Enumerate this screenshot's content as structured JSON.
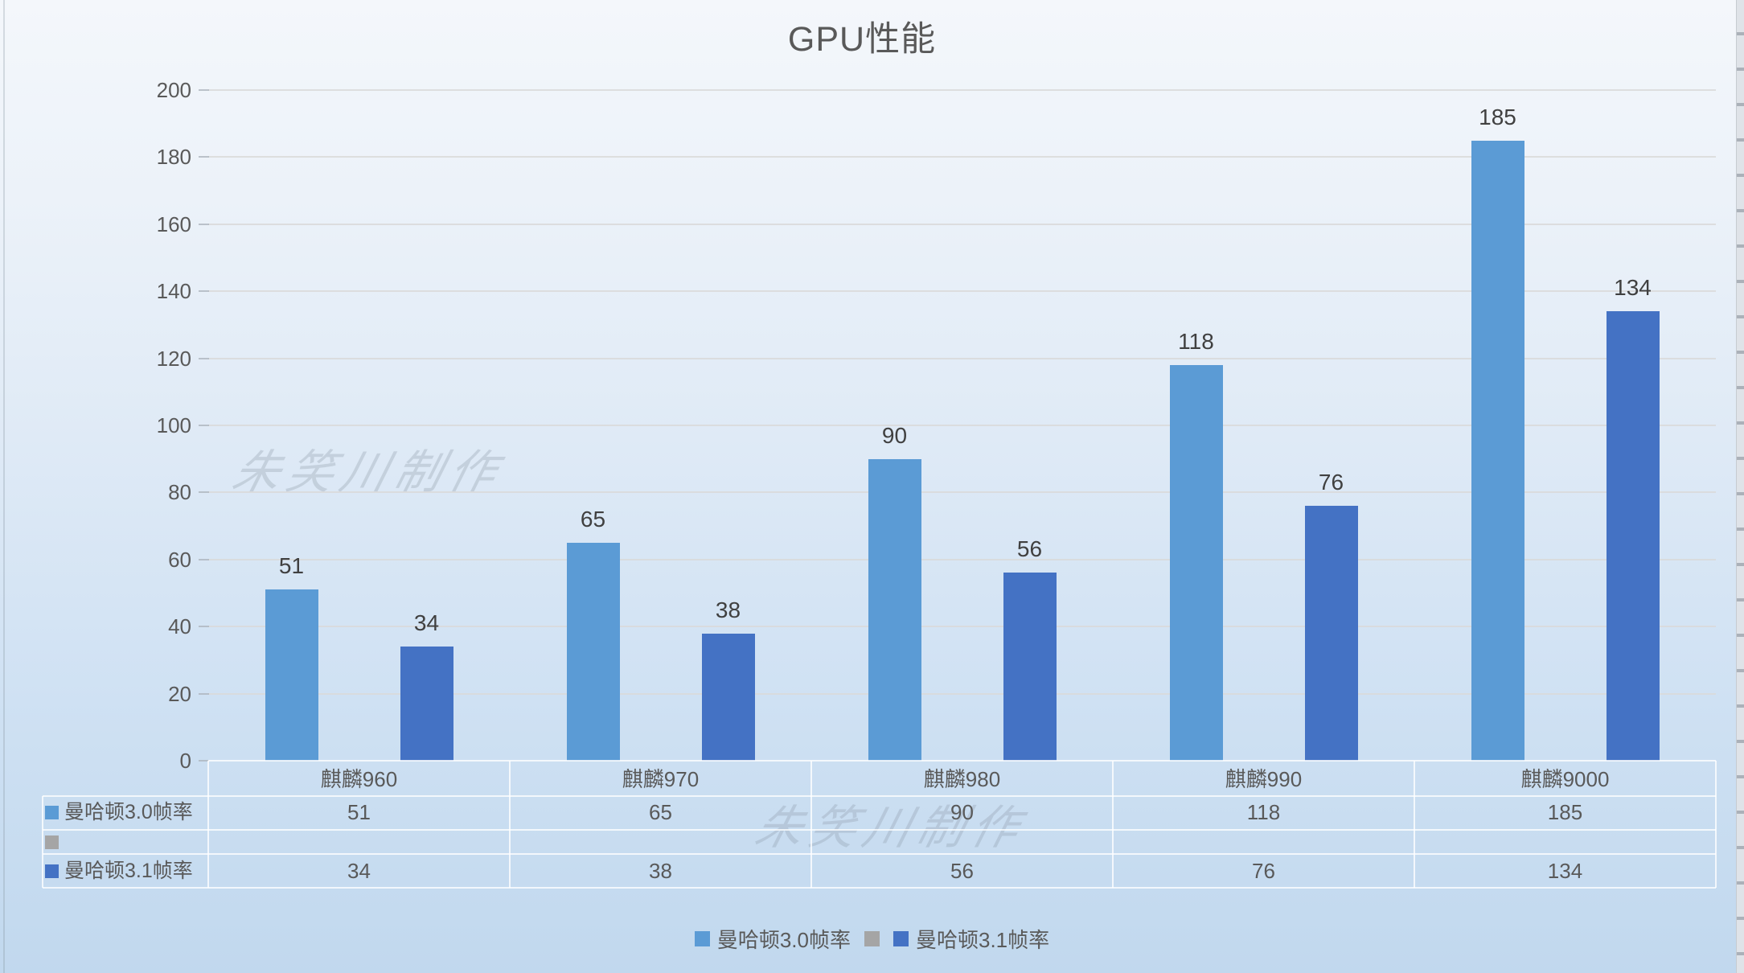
{
  "title": "GPU性能",
  "watermark": {
    "text": "朱笑川制作"
  },
  "chart_data": {
    "type": "bar",
    "title": "GPU性能",
    "categories": [
      "麒麟960",
      "麒麟970",
      "麒麟980",
      "麒麟990",
      "麒麟9000"
    ],
    "series": [
      {
        "name": "曼哈顿3.0帧率",
        "color": "#5B9BD5",
        "values": [
          51,
          65,
          90,
          118,
          185
        ]
      },
      {
        "name": "",
        "color": "#A5A5A5",
        "values": [
          null,
          null,
          null,
          null,
          null
        ]
      },
      {
        "name": "曼哈顿3.1帧率",
        "color": "#4472C4",
        "values": [
          34,
          38,
          56,
          76,
          134
        ]
      }
    ],
    "xlabel": "",
    "ylabel": "",
    "ylim": [
      0,
      200
    ],
    "y_ticks": [
      0,
      20,
      40,
      60,
      80,
      100,
      120,
      140,
      160,
      180,
      200
    ],
    "grid": true,
    "legend_position": "bottom",
    "show_data_table": true,
    "data_labels": true,
    "data_label_color": "#404040",
    "axis_label_color": "#595959",
    "gridline_color": "#D9D9D9",
    "table_border_color": "#FFFFFF",
    "background": {
      "top": "#F4F7FB",
      "bottom": "#C1D8EE"
    }
  }
}
